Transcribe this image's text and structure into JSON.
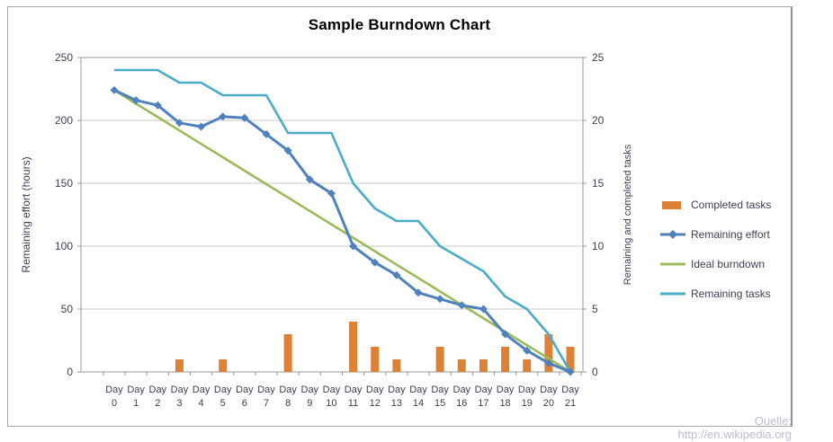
{
  "title": "Sample Burndown Chart",
  "watermark": "Quelle: http://en.wikipedia.org",
  "chart_data": {
    "type": "combo",
    "categories": [
      "Day 0",
      "Day 1",
      "Day 2",
      "Day 3",
      "Day 4",
      "Day 5",
      "Day 6",
      "Day 7",
      "Day 8",
      "Day 9",
      "Day 10",
      "Day 11",
      "Day 12",
      "Day 13",
      "Day 14",
      "Day 15",
      "Day 16",
      "Day 17",
      "Day 18",
      "Day 19",
      "Day 20",
      "Day 21"
    ],
    "left_axis": {
      "label": "Remaining effort (hours)",
      "min": 0,
      "max": 250,
      "step": 50
    },
    "right_axis": {
      "label": "Remaining and completed tasks",
      "min": 0,
      "max": 25,
      "step": 5
    },
    "grid": true,
    "legend_position": "right",
    "series": [
      {
        "name": "Completed tasks",
        "type": "bar",
        "axis": "right",
        "color": "#dd8136",
        "values": [
          0,
          0,
          0,
          1,
          0,
          1,
          0,
          0,
          3,
          0,
          0,
          4,
          2,
          1,
          0,
          2,
          1,
          1,
          2,
          1,
          3,
          2
        ]
      },
      {
        "name": "Remaining effort",
        "type": "line",
        "marker": "diamond",
        "axis": "left",
        "color": "#4f81bd",
        "values": [
          224,
          216,
          212,
          198,
          195,
          203,
          202,
          189,
          176,
          153,
          142,
          100,
          87,
          77,
          63,
          58,
          53,
          50,
          30,
          17,
          7,
          0
        ]
      },
      {
        "name": "Ideal burndown",
        "type": "line",
        "axis": "left",
        "color": "#9bbb59",
        "values": [
          224,
          213.3,
          202.7,
          192,
          181.3,
          170.7,
          160,
          149.3,
          138.7,
          128,
          117.3,
          106.7,
          96,
          85.3,
          74.7,
          64,
          53.3,
          42.7,
          32,
          21.3,
          10.7,
          0
        ]
      },
      {
        "name": "Remaining tasks",
        "type": "line",
        "axis": "right",
        "color": "#4bacc6",
        "values": [
          24,
          24,
          24,
          23,
          23,
          22,
          22,
          22,
          19,
          19,
          19,
          15,
          13,
          12,
          12,
          10,
          9,
          8,
          6,
          5,
          3,
          0
        ]
      }
    ],
    "colors": {
      "grid": "#c9c9c9",
      "axis": "#999999",
      "tick_text": "#3e3e56",
      "title_text": "#000000"
    }
  }
}
